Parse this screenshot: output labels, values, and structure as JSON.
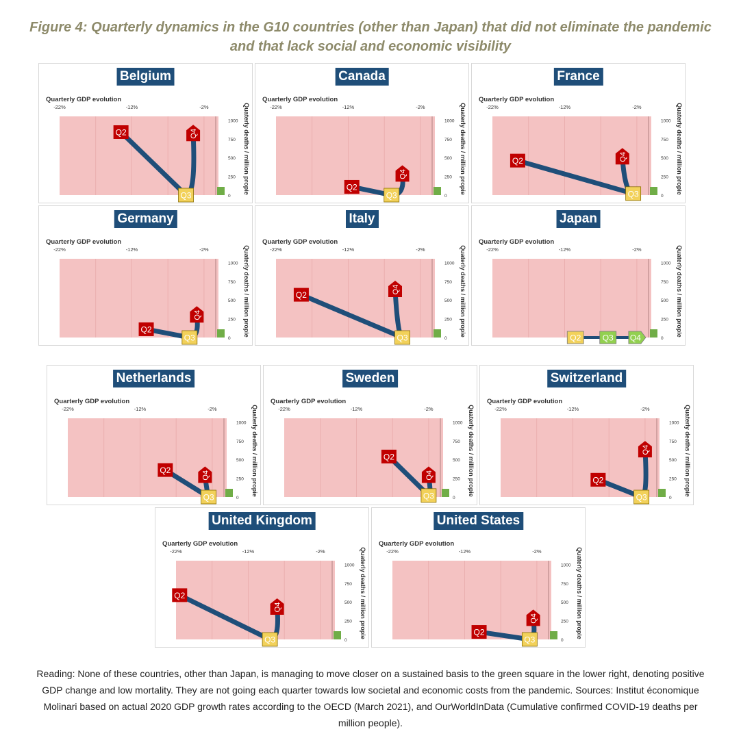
{
  "figure_title": "Figure 4: Quarterly dynamics in the G10 countries (other than Japan) that did not eliminate the pandemic and that lack social and economic visibility",
  "reading_note": "Reading: None of these countries, other than Japan, is managing to move closer on a sustained basis to the green square in the lower right, denoting positive GDP change and low mortality. They are not going each quarter towards low societal and economic costs from the pandemic. Sources: Institut économique Molinari based on actual 2020 GDP growth rates according to the OECD (March 2021), and OurWorldInData (Cumulative confirmed COVID-19 deaths per million people).",
  "colors": {
    "plot_background": "#f4c2c2",
    "trajectory": "#1f4e79",
    "title_background": "#1f4e79",
    "q2_marker": "#c00000",
    "q3_marker": "#f2d15a",
    "q3_marker_japan": "#92d050",
    "green_square": "#70ad47",
    "figure_title": "#8d8a6a"
  },
  "chart_data": [
    {
      "type": "line",
      "title": "Belgium",
      "xlabel": "Quarterly GDP evolution",
      "ylabel": "Quaterly deaths / million propie",
      "x_ticks": [
        "-22%",
        "-12%",
        "-2%"
      ],
      "y_ticks": [
        "1000",
        "750",
        "500",
        "250",
        "0"
      ],
      "xlim": [
        -22,
        0
      ],
      "ylim": [
        0,
        1050
      ],
      "series": [
        {
          "points": [
            {
              "label": "Q2",
              "x": -13.5,
              "y": 840
            },
            {
              "label": "Q3",
              "x": -4.5,
              "y": 0
            },
            {
              "label": "Q4",
              "x": -3.5,
              "y": 810
            }
          ]
        }
      ]
    },
    {
      "type": "line",
      "title": "Canada",
      "xlabel": "Quarterly GDP evolution",
      "ylabel": "Quaterly deaths / million propie",
      "x_ticks": [
        "-22%",
        "-12%",
        "-2%"
      ],
      "y_ticks": [
        "1000",
        "750",
        "500",
        "250",
        "0"
      ],
      "xlim": [
        -22,
        0
      ],
      "ylim": [
        0,
        1050
      ],
      "series": [
        {
          "points": [
            {
              "label": "Q2",
              "x": -11.5,
              "y": 110
            },
            {
              "label": "Q3",
              "x": -6,
              "y": 0
            },
            {
              "label": "Q4",
              "x": -4.5,
              "y": 270
            }
          ]
        }
      ]
    },
    {
      "type": "line",
      "title": "France",
      "xlabel": "Quarterly GDP evolution",
      "ylabel": "Quaterly deaths / million propie",
      "x_ticks": [
        "-22%",
        "-12%",
        "-2%"
      ],
      "y_ticks": [
        "1000",
        "750",
        "500",
        "250",
        "0"
      ],
      "xlim": [
        -22,
        0
      ],
      "ylim": [
        0,
        1050
      ],
      "series": [
        {
          "points": [
            {
              "label": "Q2",
              "x": -18.5,
              "y": 460
            },
            {
              "label": "Q3",
              "x": -2.5,
              "y": 20
            },
            {
              "label": "Q4",
              "x": -4,
              "y": 500
            }
          ]
        }
      ]
    },
    {
      "type": "line",
      "title": "Germany",
      "xlabel": "Quarterly GDP evolution",
      "ylabel": "Quaterly deaths / million propie",
      "x_ticks": [
        "-22%",
        "-12%",
        "-2%"
      ],
      "y_ticks": [
        "1000",
        "750",
        "500",
        "250",
        "0"
      ],
      "xlim": [
        -22,
        0
      ],
      "ylim": [
        0,
        1050
      ],
      "series": [
        {
          "points": [
            {
              "label": "Q2",
              "x": -10,
              "y": 110
            },
            {
              "label": "Q3",
              "x": -4,
              "y": 0
            },
            {
              "label": "Q4",
              "x": -3,
              "y": 290
            }
          ]
        }
      ]
    },
    {
      "type": "line",
      "title": "Italy",
      "xlabel": "Quarterly GDP evolution",
      "ylabel": "Quaterly deaths / million propie",
      "x_ticks": [
        "-22%",
        "-12%",
        "-2%"
      ],
      "y_ticks": [
        "1000",
        "750",
        "500",
        "250",
        "0"
      ],
      "xlim": [
        -22,
        0
      ],
      "ylim": [
        0,
        1050
      ],
      "series": [
        {
          "points": [
            {
              "label": "Q2",
              "x": -18.5,
              "y": 570
            },
            {
              "label": "Q3",
              "x": -4.5,
              "y": 0
            },
            {
              "label": "Q4",
              "x": -5.5,
              "y": 630
            }
          ]
        }
      ]
    },
    {
      "type": "line",
      "title": "Japan",
      "xlabel": "Quarterly GDP evolution",
      "ylabel": "Quaterly deaths / million propie",
      "x_ticks": [
        "-22%",
        "-12%",
        "-2%"
      ],
      "y_ticks": [
        "1000",
        "750",
        "500",
        "250",
        "0"
      ],
      "xlim": [
        -22,
        0
      ],
      "ylim": [
        0,
        1050
      ],
      "series": [
        {
          "points": [
            {
              "label": "Q2",
              "x": -10.5,
              "y": 0
            },
            {
              "label": "Q3",
              "x": -6,
              "y": 0
            },
            {
              "label": "Q4",
              "x": -2,
              "y": 0
            }
          ]
        }
      ]
    },
    {
      "type": "line",
      "title": "Netherlands",
      "xlabel": "Quarterly GDP evolution",
      "ylabel": "Quaterly deaths / million propie",
      "x_ticks": [
        "-22%",
        "-12%",
        "-2%"
      ],
      "y_ticks": [
        "1000",
        "750",
        "500",
        "250",
        "0"
      ],
      "xlim": [
        -22,
        0
      ],
      "ylim": [
        0,
        1050
      ],
      "series": [
        {
          "points": [
            {
              "label": "Q2",
              "x": -8.5,
              "y": 360
            },
            {
              "label": "Q3",
              "x": -2.5,
              "y": 0
            },
            {
              "label": "Q4",
              "x": -3,
              "y": 280
            }
          ]
        }
      ]
    },
    {
      "type": "line",
      "title": "Sweden",
      "xlabel": "Quarterly GDP evolution",
      "ylabel": "Quaterly deaths / million propie",
      "x_ticks": [
        "-22%",
        "-12%",
        "-2%"
      ],
      "y_ticks": [
        "1000",
        "750",
        "500",
        "250",
        "0"
      ],
      "xlim": [
        -22,
        0
      ],
      "ylim": [
        0,
        1050
      ],
      "series": [
        {
          "points": [
            {
              "label": "Q2",
              "x": -7.5,
              "y": 540
            },
            {
              "label": "Q3",
              "x": -2,
              "y": 20
            },
            {
              "label": "Q4",
              "x": -2,
              "y": 280
            }
          ]
        }
      ]
    },
    {
      "type": "line",
      "title": "Switzerland",
      "xlabel": "Quarterly GDP evolution",
      "ylabel": "Quaterly deaths / million propie",
      "x_ticks": [
        "-22%",
        "-12%",
        "-2%"
      ],
      "y_ticks": [
        "1000",
        "750",
        "500",
        "250",
        "0"
      ],
      "xlim": [
        -22,
        0
      ],
      "ylim": [
        0,
        1050
      ],
      "series": [
        {
          "points": [
            {
              "label": "Q2",
              "x": -8.5,
              "y": 230
            },
            {
              "label": "Q3",
              "x": -2.5,
              "y": 0
            },
            {
              "label": "Q4",
              "x": -2,
              "y": 620
            }
          ]
        }
      ]
    },
    {
      "type": "line",
      "title": "United Kingdom",
      "xlabel": "Quarterly GDP evolution",
      "ylabel": "Quaterly deaths / million propie",
      "x_ticks": [
        "-22%",
        "-12%",
        "-2%"
      ],
      "y_ticks": [
        "1000",
        "750",
        "500",
        "250",
        "0"
      ],
      "xlim": [
        -22,
        0
      ],
      "ylim": [
        0,
        1050
      ],
      "series": [
        {
          "points": [
            {
              "label": "Q2",
              "x": -21.5,
              "y": 590
            },
            {
              "label": "Q3",
              "x": -9,
              "y": 0
            },
            {
              "label": "Q4",
              "x": -8,
              "y": 420
            }
          ]
        }
      ]
    },
    {
      "type": "line",
      "title": "United States",
      "xlabel": "Quarterly GDP evolution",
      "ylabel": "Quaterly deaths / million propie",
      "x_ticks": [
        "-22%",
        "-12%",
        "-2%"
      ],
      "y_ticks": [
        "1000",
        "750",
        "500",
        "250",
        "0"
      ],
      "xlim": [
        -22,
        0
      ],
      "ylim": [
        0,
        1050
      ],
      "series": [
        {
          "points": [
            {
              "label": "Q2",
              "x": -10,
              "y": 100
            },
            {
              "label": "Q3",
              "x": -3,
              "y": 0
            },
            {
              "label": "Q4",
              "x": -2.5,
              "y": 270
            }
          ]
        }
      ]
    }
  ]
}
